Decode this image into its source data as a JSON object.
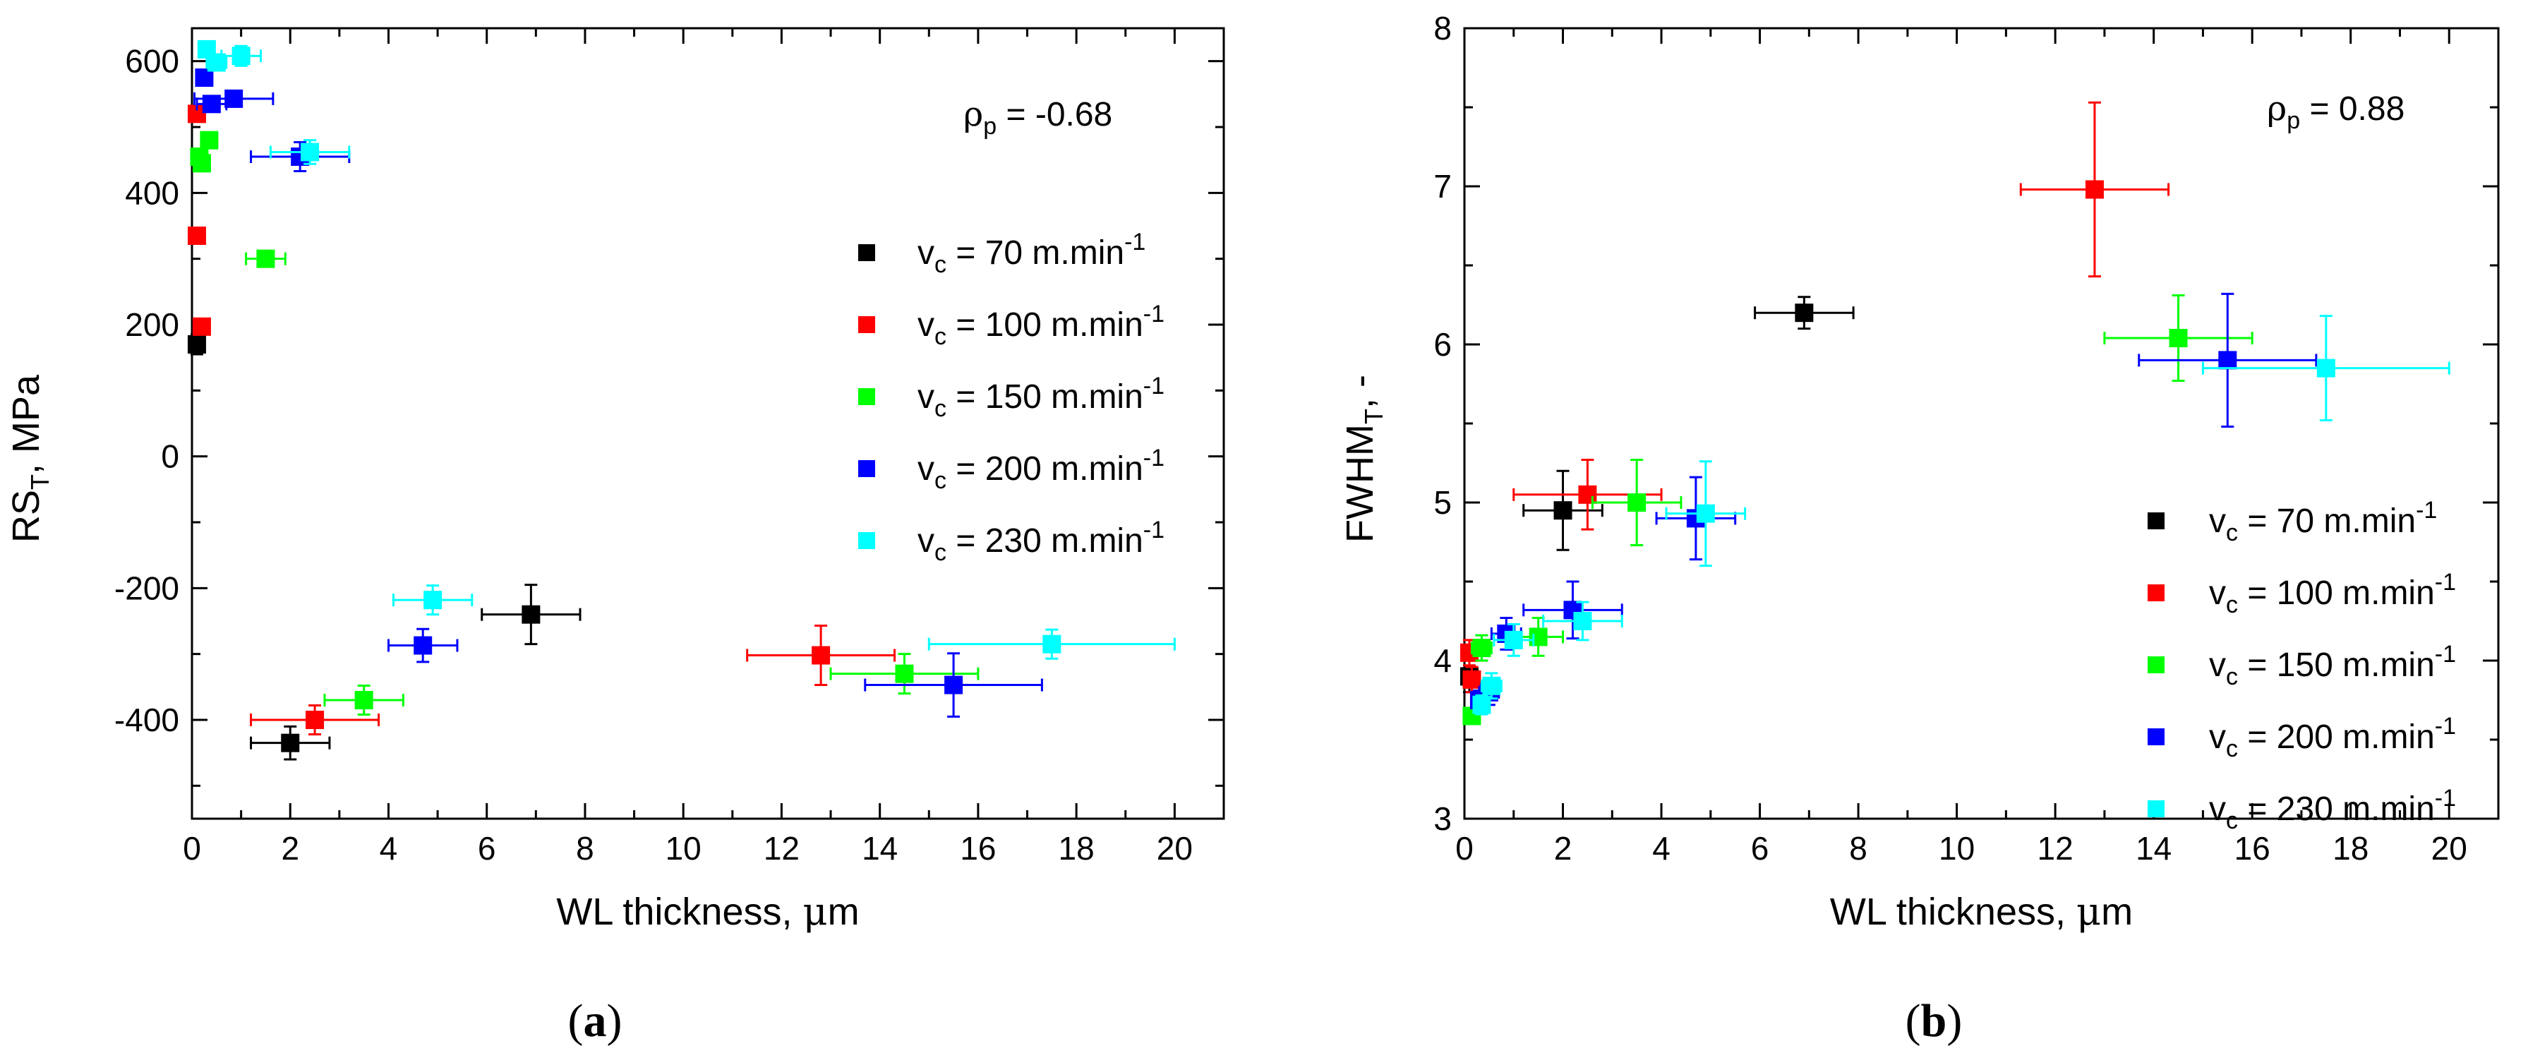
{
  "chart_data": [
    {
      "type": "scatter",
      "panel_label": "(a)",
      "panel_letter": "a",
      "xlabel_text": "WL thickness, ",
      "xlabel_mu": "μ",
      "xlabel_unit": "m",
      "ylabel_main": "RS",
      "ylabel_sub": "T",
      "ylabel_unit": ", MPa",
      "xlim": [
        0,
        21
      ],
      "ylim": [
        -550,
        650
      ],
      "xticks": [
        0,
        2,
        4,
        6,
        8,
        10,
        12,
        14,
        16,
        18,
        20
      ],
      "xtick_labels": [
        "0",
        "2",
        "4",
        "6",
        "8",
        "10",
        "12",
        "14",
        "16",
        "18",
        "20"
      ],
      "yticks": [
        -400,
        -200,
        0,
        200,
        400,
        600
      ],
      "ytick_labels": [
        "-400",
        "-200",
        "0",
        "200",
        "400",
        "600"
      ],
      "xminor": 1,
      "yminor": 100,
      "annotation": {
        "rho": "ρ",
        "sub": "p",
        "text": " = -0.68"
      },
      "legend_position": "right",
      "series": [
        {
          "name": "vc = 70 m.min-1",
          "legend": {
            "v": "v",
            "sub": "c",
            "text": " = 70 m.min",
            "sup": "-1"
          },
          "color": "#000000",
          "points": [
            [
              0.1,
              170,
              0,
              15
            ],
            [
              2.0,
              -435,
              0.8,
              25
            ],
            [
              6.9,
              -240,
              1.0,
              45
            ]
          ]
        },
        {
          "name": "vc = 100 m.min-1",
          "legend": {
            "v": "v",
            "sub": "c",
            "text": " = 100 m.min",
            "sup": "-1"
          },
          "color": "#ff0000",
          "points": [
            [
              0.1,
              520,
              0,
              10
            ],
            [
              0.1,
              335,
              0,
              10
            ],
            [
              0.2,
              197,
              0,
              10
            ],
            [
              2.5,
              -400,
              1.3,
              22
            ],
            [
              12.8,
              -302,
              1.5,
              45
            ]
          ]
        },
        {
          "name": "vc = 150 m.min-1",
          "legend": {
            "v": "v",
            "sub": "c",
            "text": " = 150 m.min",
            "sup": "-1"
          },
          "color": "#00ff00",
          "points": [
            [
              0.15,
              455,
              0,
              12
            ],
            [
              0.2,
              445,
              0,
              10
            ],
            [
              0.35,
              480,
              0,
              12
            ],
            [
              1.5,
              300,
              0.4,
              12
            ],
            [
              3.5,
              -370,
              0.8,
              22
            ],
            [
              14.5,
              -330,
              1.5,
              30
            ]
          ]
        },
        {
          "name": "vc = 200 m.min-1",
          "legend": {
            "v": "v",
            "sub": "c",
            "text": " = 200 m.min",
            "sup": "-1"
          },
          "color": "#0000ff",
          "points": [
            [
              0.25,
              575,
              0,
              12
            ],
            [
              0.4,
              535,
              0.3,
              12
            ],
            [
              0.85,
              543,
              0.8,
              12
            ],
            [
              2.2,
              455,
              1.0,
              22
            ],
            [
              4.7,
              -287,
              0.7,
              25
            ],
            [
              15.5,
              -347,
              1.8,
              48
            ]
          ]
        },
        {
          "name": "vc = 230 m.min-1",
          "legend": {
            "v": "v",
            "sub": "c",
            "text": " = 230 m.min",
            "sup": "-1"
          },
          "color": "#00ffff",
          "points": [
            [
              0.3,
              618,
              0,
              10
            ],
            [
              0.5,
              598,
              0.2,
              10
            ],
            [
              1.0,
              608,
              0.4,
              15
            ],
            [
              2.4,
              462,
              0.8,
              18
            ],
            [
              4.9,
              -218,
              0.8,
              22
            ],
            [
              17.5,
              -285,
              2.5,
              22
            ]
          ]
        }
      ]
    },
    {
      "type": "scatter",
      "panel_label": "(b)",
      "panel_letter": "b",
      "xlabel_text": "WL thickness, ",
      "xlabel_mu": "μ",
      "xlabel_unit": "m",
      "ylabel_main": "FWHM",
      "ylabel_sub": "T",
      "ylabel_unit": ", -",
      "xlim": [
        0,
        21
      ],
      "ylim": [
        3,
        8
      ],
      "xticks": [
        0,
        2,
        4,
        6,
        8,
        10,
        12,
        14,
        16,
        18,
        20
      ],
      "xtick_labels": [
        "0",
        "2",
        "4",
        "6",
        "8",
        "10",
        "12",
        "14",
        "16",
        "18",
        "20"
      ],
      "yticks": [
        3,
        4,
        5,
        6,
        7,
        8
      ],
      "ytick_labels": [
        "3",
        "4",
        "5",
        "6",
        "7",
        "8"
      ],
      "xminor": 1,
      "yminor": 0.5,
      "annotation": {
        "rho": "ρ",
        "sub": "p",
        "text": " = 0.88"
      },
      "legend_position": "bottom-right",
      "series": [
        {
          "name": "vc = 70 m.min-1",
          "legend": {
            "v": "v",
            "sub": "c",
            "text": " = 70 m.min",
            "sup": "-1"
          },
          "color": "#000000",
          "points": [
            [
              0.1,
              3.9,
              0,
              0.1
            ],
            [
              2.0,
              4.95,
              0.8,
              0.25
            ],
            [
              6.9,
              6.2,
              1.0,
              0.1
            ]
          ]
        },
        {
          "name": "vc = 100 m.min-1",
          "legend": {
            "v": "v",
            "sub": "c",
            "text": " = 100 m.min",
            "sup": "-1"
          },
          "color": "#ff0000",
          "points": [
            [
              0.1,
              4.05,
              0,
              0.08
            ],
            [
              0.15,
              3.88,
              0,
              0.08
            ],
            [
              2.5,
              5.05,
              1.5,
              0.22
            ],
            [
              12.8,
              6.98,
              1.5,
              0.55
            ]
          ]
        },
        {
          "name": "vc = 150 m.min-1",
          "legend": {
            "v": "v",
            "sub": "c",
            "text": " = 150 m.min",
            "sup": "-1"
          },
          "color": "#00ff00",
          "points": [
            [
              0.15,
              3.65,
              0,
              0.05
            ],
            [
              0.35,
              4.08,
              0.2,
              0.08
            ],
            [
              1.5,
              4.15,
              0.5,
              0.12
            ],
            [
              3.5,
              5.0,
              0.9,
              0.27
            ],
            [
              14.5,
              6.04,
              1.5,
              0.27
            ]
          ]
        },
        {
          "name": "vc = 200 m.min-1",
          "legend": {
            "v": "v",
            "sub": "c",
            "text": " = 200 m.min",
            "sup": "-1"
          },
          "color": "#0000ff",
          "points": [
            [
              0.3,
              3.75,
              0,
              0.06
            ],
            [
              0.5,
              3.8,
              0.2,
              0.08
            ],
            [
              0.85,
              4.17,
              0.3,
              0.1
            ],
            [
              2.2,
              4.32,
              1.0,
              0.18
            ],
            [
              4.7,
              4.9,
              0.8,
              0.26
            ],
            [
              15.5,
              5.9,
              1.8,
              0.42
            ]
          ]
        },
        {
          "name": "vc = 230 m.min-1",
          "legend": {
            "v": "v",
            "sub": "c",
            "text": " = 230 m.min",
            "sup": "-1"
          },
          "color": "#00ffff",
          "points": [
            [
              0.35,
              3.72,
              0,
              0.06
            ],
            [
              0.55,
              3.84,
              0.2,
              0.08
            ],
            [
              1.0,
              4.13,
              0.4,
              0.1
            ],
            [
              2.4,
              4.25,
              0.8,
              0.12
            ],
            [
              4.9,
              4.93,
              0.8,
              0.33
            ],
            [
              17.5,
              5.85,
              2.5,
              0.33
            ]
          ]
        }
      ]
    }
  ]
}
